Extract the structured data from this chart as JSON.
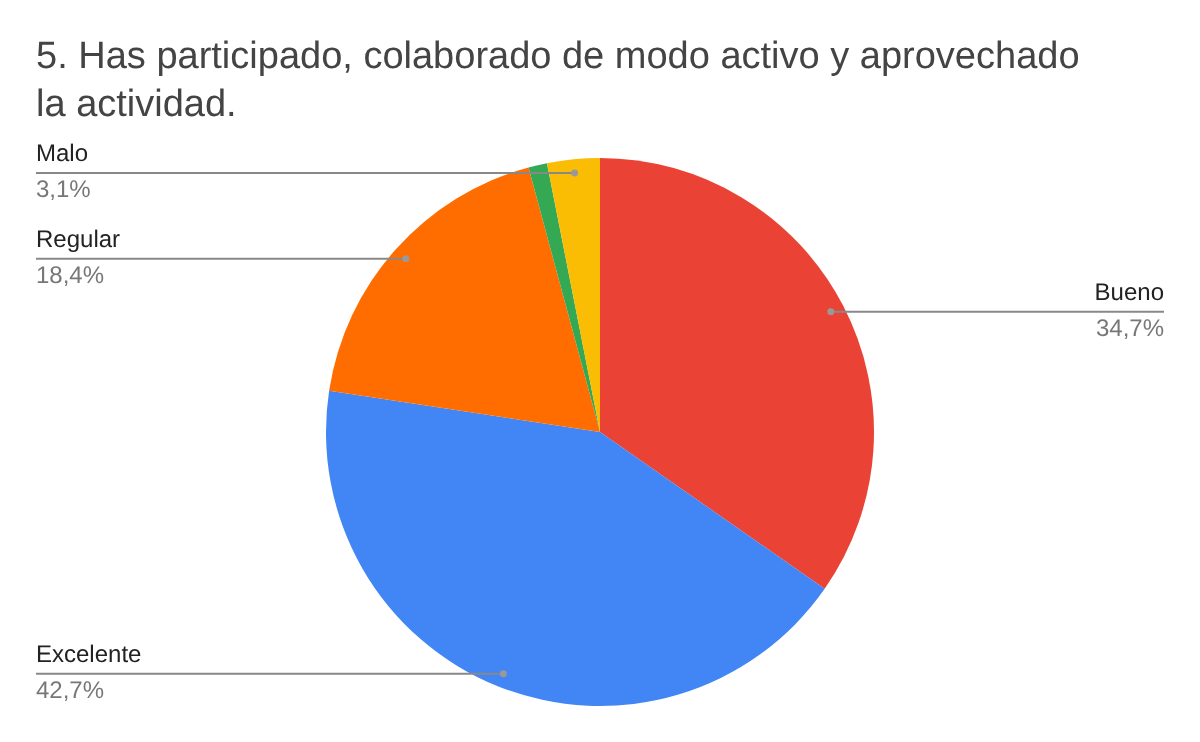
{
  "chart_data": {
    "type": "pie",
    "title": "5. Has participado, colaborado de modo activo y aprovechado la actividad.",
    "categories": [
      "Bueno",
      "Excelente",
      "Regular",
      null,
      "Malo"
    ],
    "values": [
      34.7,
      42.7,
      18.4,
      1.1,
      3.1
    ],
    "value_labels": [
      "34,7%",
      "42,7%",
      "18,4%",
      null,
      "3,1%"
    ],
    "colors": [
      "#ea4335",
      "#4285f4",
      "#ff6d01",
      "#34a853",
      "#fbbc04"
    ]
  }
}
